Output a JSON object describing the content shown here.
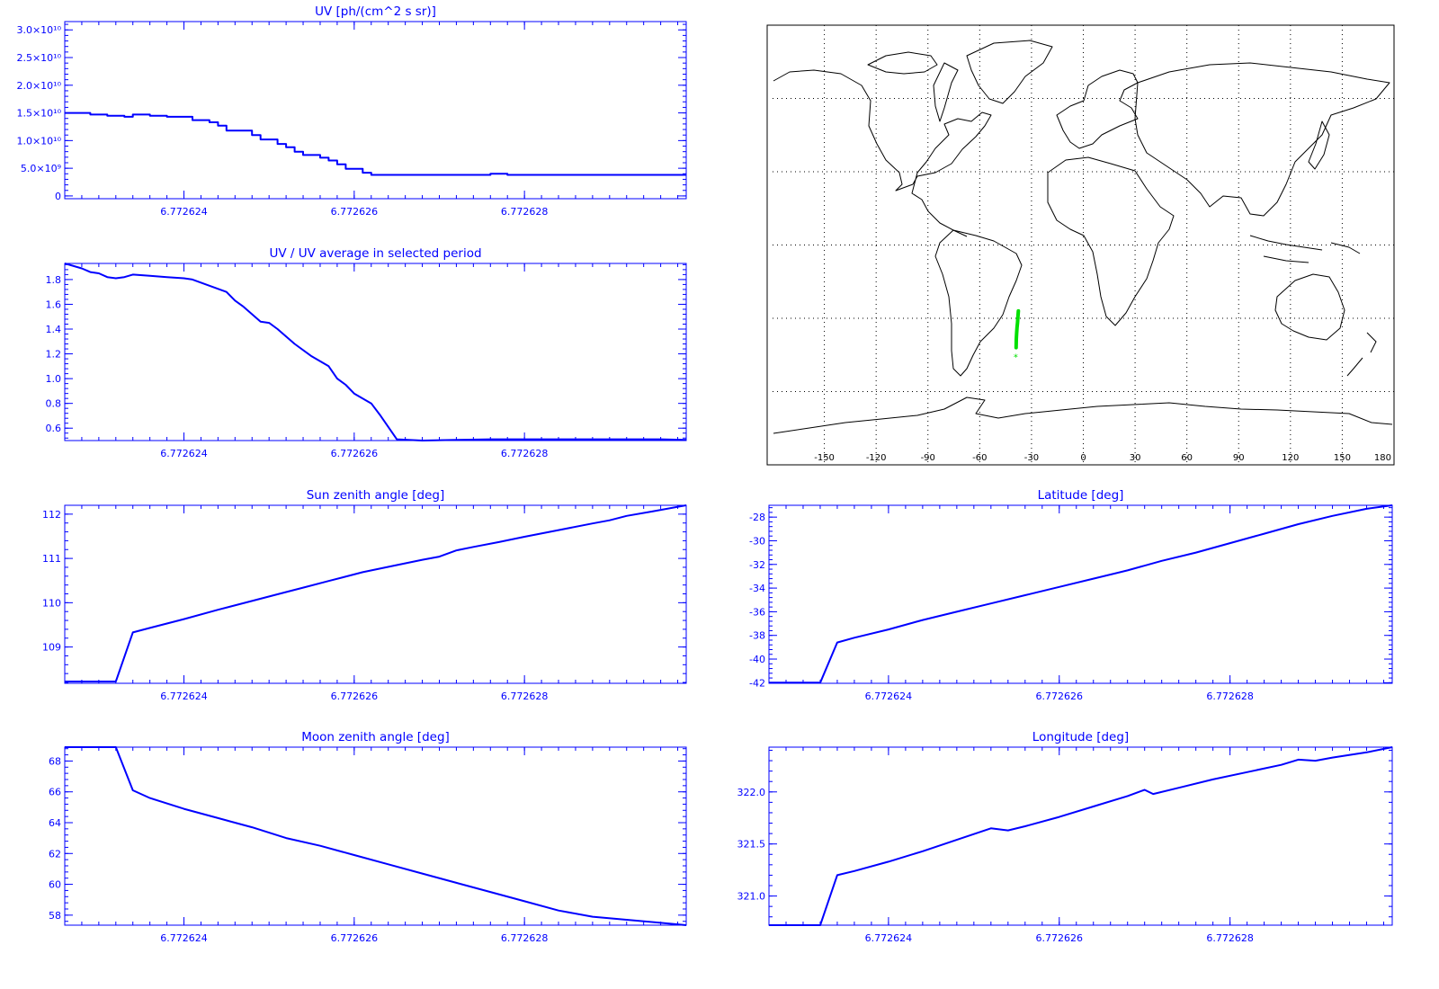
{
  "colors": {
    "plot": "#0000ff",
    "track": "#00e000",
    "map": "#000000"
  },
  "chart_data": [
    {
      "id": "uv",
      "type": "line",
      "step": true,
      "title": "UV [ph/(cm^2 s sr)]",
      "x_ticks": [
        {
          "v": 6.772624,
          "label": "6.772624"
        },
        {
          "v": 6.772626,
          "label": "6.772626"
        },
        {
          "v": 6.772628,
          "label": "6.772628"
        }
      ],
      "y_ticks": [
        {
          "v": 0,
          "label": "0"
        },
        {
          "v": 5000000000.0,
          "label": "5.0×10⁹"
        },
        {
          "v": 10000000000.0,
          "label": "1.0×10¹⁰"
        },
        {
          "v": 15000000000.0,
          "label": "1.5×10¹⁰"
        },
        {
          "v": 20000000000.0,
          "label": "2.0×10¹⁰"
        },
        {
          "v": 25000000000.0,
          "label": "2.5×10¹⁰"
        },
        {
          "v": 30000000000.0,
          "label": "3.0×10¹⁰"
        }
      ],
      "xlim": [
        6.7726226,
        6.7726299
      ],
      "ylim": [
        -500000000,
        31500000000
      ],
      "x": [
        6.7726226,
        6.7726229,
        6.7726231,
        6.7726233,
        6.7726234,
        6.7726236,
        6.7726238,
        6.772624,
        6.7726241,
        6.7726243,
        6.7726244,
        6.7726245,
        6.7726247,
        6.7726248,
        6.7726249,
        6.7726251,
        6.7726252,
        6.7726253,
        6.7726254,
        6.7726256,
        6.7726257,
        6.7726258,
        6.7726259,
        6.7726261,
        6.7726262,
        6.7726263,
        6.7726265,
        6.7726268,
        6.772627,
        6.7726272,
        6.7726274,
        6.7726276,
        6.7726278,
        6.772628,
        6.7726282,
        6.7726284,
        6.7726286,
        6.7726288,
        6.772629,
        6.7726292,
        6.7726294,
        6.7726296,
        6.7726299
      ],
      "y": [
        15000000000,
        14700000000,
        14500000000,
        14300000000,
        14700000000,
        14500000000,
        14300000000,
        14300000000,
        13700000000,
        13300000000,
        12700000000,
        11800000000,
        11800000000,
        11000000000,
        10200000000,
        9400000000,
        8800000000,
        8000000000,
        7400000000,
        6900000000,
        6400000000,
        5700000000,
        4900000000,
        4200000000,
        3800000000,
        3800000000,
        3800000000,
        3800000000,
        3800000000,
        3800000000,
        3800000000,
        4000000000,
        3800000000,
        3800000000,
        3800000000,
        3800000000,
        3800000000,
        3800000000,
        3800000000,
        3800000000,
        3800000000,
        3800000000,
        3800000000
      ]
    },
    {
      "id": "ratio",
      "type": "line",
      "title": "UV / UV average in selected period",
      "x_ticks": [
        {
          "v": 6.772624,
          "label": "6.772624"
        },
        {
          "v": 6.772626,
          "label": "6.772626"
        },
        {
          "v": 6.772628,
          "label": "6.772628"
        }
      ],
      "y_ticks": [
        {
          "v": 0.6,
          "label": "0.6"
        },
        {
          "v": 0.8,
          "label": "0.8"
        },
        {
          "v": 1.0,
          "label": "1.0"
        },
        {
          "v": 1.2,
          "label": "1.2"
        },
        {
          "v": 1.4,
          "label": "1.4"
        },
        {
          "v": 1.6,
          "label": "1.6"
        },
        {
          "v": 1.8,
          "label": "1.8"
        }
      ],
      "xlim": [
        6.7726226,
        6.7726299
      ],
      "ylim": [
        0.5,
        1.93
      ],
      "x": [
        6.7726226,
        6.7726228,
        6.7726229,
        6.772623,
        6.7726231,
        6.7726232,
        6.7726233,
        6.7726234,
        6.7726236,
        6.7726238,
        6.772624,
        6.7726241,
        6.7726243,
        6.7726245,
        6.7726246,
        6.7726247,
        6.7726249,
        6.772625,
        6.7726251,
        6.7726253,
        6.7726255,
        6.7726257,
        6.7726258,
        6.7726259,
        6.772626,
        6.7726262,
        6.7726263,
        6.7726265,
        6.7726268,
        6.7726272,
        6.7726276,
        6.772628,
        6.7726284,
        6.7726288,
        6.7726292,
        6.7726296,
        6.7726299
      ],
      "y": [
        1.93,
        1.89,
        1.86,
        1.85,
        1.82,
        1.81,
        1.82,
        1.84,
        1.83,
        1.82,
        1.81,
        1.8,
        1.75,
        1.7,
        1.63,
        1.58,
        1.46,
        1.45,
        1.4,
        1.28,
        1.18,
        1.1,
        1.0,
        0.95,
        0.88,
        0.8,
        0.71,
        0.51,
        0.5,
        0.505,
        0.51,
        0.51,
        0.51,
        0.51,
        0.51,
        0.51,
        0.505
      ]
    },
    {
      "id": "sun",
      "type": "line",
      "title": "Sun zenith angle [deg]",
      "x_ticks": [
        {
          "v": 6.772624,
          "label": "6.772624"
        },
        {
          "v": 6.772626,
          "label": "6.772626"
        },
        {
          "v": 6.772628,
          "label": "6.772628"
        }
      ],
      "y_ticks": [
        {
          "v": 109,
          "label": "109"
        },
        {
          "v": 110,
          "label": "110"
        },
        {
          "v": 111,
          "label": "111"
        },
        {
          "v": 112,
          "label": "112"
        }
      ],
      "xlim": [
        6.7726226,
        6.7726299
      ],
      "ylim": [
        108.18,
        112.2
      ],
      "x": [
        6.7726226,
        6.7726229,
        6.7726232,
        6.7726234,
        6.7726236,
        6.772624,
        6.7726244,
        6.7726248,
        6.7726252,
        6.7726254,
        6.7726257,
        6.7726261,
        6.7726265,
        6.7726268,
        6.772627,
        6.7726272,
        6.7726274,
        6.7726277,
        6.772628,
        6.7726284,
        6.7726288,
        6.772629,
        6.7726292,
        6.7726295,
        6.7726299
      ],
      "y": [
        108.22,
        108.22,
        108.22,
        109.33,
        109.43,
        109.63,
        109.84,
        110.04,
        110.24,
        110.34,
        110.49,
        110.69,
        110.85,
        110.97,
        111.04,
        111.18,
        111.26,
        111.37,
        111.49,
        111.64,
        111.79,
        111.86,
        111.96,
        112.06,
        112.2
      ]
    },
    {
      "id": "moon",
      "type": "line",
      "title": "Moon zenith angle [deg]",
      "x_ticks": [
        {
          "v": 6.772624,
          "label": "6.772624"
        },
        {
          "v": 6.772626,
          "label": "6.772626"
        },
        {
          "v": 6.772628,
          "label": "6.772628"
        }
      ],
      "y_ticks": [
        {
          "v": 58,
          "label": "58"
        },
        {
          "v": 60,
          "label": "60"
        },
        {
          "v": 62,
          "label": "62"
        },
        {
          "v": 64,
          "label": "64"
        },
        {
          "v": 66,
          "label": "66"
        },
        {
          "v": 68,
          "label": "68"
        }
      ],
      "xlim": [
        6.7726226,
        6.7726299
      ],
      "ylim": [
        57.35,
        68.9
      ],
      "x": [
        6.7726226,
        6.7726229,
        6.7726232,
        6.7726234,
        6.7726236,
        6.772624,
        6.7726244,
        6.7726248,
        6.7726252,
        6.7726256,
        6.772626,
        6.7726264,
        6.7726268,
        6.7726272,
        6.7726276,
        6.772628,
        6.7726284,
        6.7726288,
        6.7726292,
        6.7726296,
        6.7726299
      ],
      "y": [
        68.9,
        68.9,
        68.9,
        66.1,
        65.6,
        64.9,
        64.3,
        63.7,
        63.0,
        62.5,
        61.9,
        61.3,
        60.7,
        60.1,
        59.5,
        58.9,
        58.3,
        57.9,
        57.7,
        57.5,
        57.35
      ]
    },
    {
      "id": "lat",
      "type": "line",
      "title": "Latitude [deg]",
      "x_ticks": [
        {
          "v": 6.772624,
          "label": "6.772624"
        },
        {
          "v": 6.772626,
          "label": "6.772626"
        },
        {
          "v": 6.772628,
          "label": "6.772628"
        }
      ],
      "y_ticks": [
        {
          "v": -42,
          "label": "-42"
        },
        {
          "v": -40,
          "label": "-40"
        },
        {
          "v": -38,
          "label": "-38"
        },
        {
          "v": -36,
          "label": "-36"
        },
        {
          "v": -34,
          "label": "-34"
        },
        {
          "v": -32,
          "label": "-32"
        },
        {
          "v": -30,
          "label": "-30"
        },
        {
          "v": -28,
          "label": "-28"
        }
      ],
      "xlim": [
        6.7726226,
        6.7726299
      ],
      "ylim": [
        -42.05,
        -27.0
      ],
      "x": [
        6.7726226,
        6.7726229,
        6.7726232,
        6.7726234,
        6.7726236,
        6.772624,
        6.7726244,
        6.7726248,
        6.7726252,
        6.7726256,
        6.772626,
        6.7726264,
        6.7726268,
        6.7726272,
        6.7726276,
        6.772628,
        6.7726284,
        6.7726288,
        6.7726292,
        6.7726296,
        6.7726299
      ],
      "y": [
        -42.0,
        -42.0,
        -42.0,
        -38.6,
        -38.2,
        -37.5,
        -36.7,
        -36.0,
        -35.3,
        -34.6,
        -33.9,
        -33.2,
        -32.5,
        -31.7,
        -31.0,
        -30.2,
        -29.4,
        -28.6,
        -27.9,
        -27.3,
        -27.0
      ]
    },
    {
      "id": "lon",
      "type": "line",
      "title": "Longitude [deg]",
      "x_ticks": [
        {
          "v": 6.772624,
          "label": "6.772624"
        },
        {
          "v": 6.772626,
          "label": "6.772626"
        },
        {
          "v": 6.772628,
          "label": "6.772628"
        }
      ],
      "y_ticks": [
        {
          "v": 321.0,
          "label": "321.0"
        },
        {
          "v": 321.5,
          "label": "321.5"
        },
        {
          "v": 322.0,
          "label": "322.0"
        }
      ],
      "xlim": [
        6.7726226,
        6.7726299
      ],
      "ylim": [
        320.72,
        322.43
      ],
      "x": [
        6.7726226,
        6.7726229,
        6.7726232,
        6.7726234,
        6.7726236,
        6.772624,
        6.7726244,
        6.7726248,
        6.7726252,
        6.7726254,
        6.7726256,
        6.772626,
        6.7726264,
        6.7726268,
        6.772627,
        6.7726271,
        6.7726274,
        6.7726278,
        6.7726282,
        6.7726286,
        6.7726288,
        6.772629,
        6.7726292,
        6.7726296,
        6.7726299
      ],
      "y": [
        320.72,
        320.72,
        320.72,
        321.2,
        321.24,
        321.33,
        321.43,
        321.54,
        321.65,
        321.63,
        321.67,
        321.76,
        321.86,
        321.96,
        322.02,
        321.98,
        322.04,
        322.12,
        322.19,
        322.26,
        322.31,
        322.3,
        322.33,
        322.38,
        322.43
      ]
    }
  ],
  "map": {
    "lon_ticks": [
      {
        "v": -150,
        "label": "-150"
      },
      {
        "v": -120,
        "label": "-120"
      },
      {
        "v": -90,
        "label": "-90"
      },
      {
        "v": -60,
        "label": "-60"
      },
      {
        "v": -30,
        "label": "-30"
      },
      {
        "v": 0,
        "label": "0"
      },
      {
        "v": 30,
        "label": "30"
      },
      {
        "v": 60,
        "label": "60"
      },
      {
        "v": 90,
        "label": "90"
      },
      {
        "v": 120,
        "label": "120"
      },
      {
        "v": 150,
        "label": "150"
      },
      {
        "v": 180,
        "label": "180"
      }
    ],
    "lon_range": [
      -180,
      180
    ],
    "lat_range": [
      -90,
      90
    ],
    "grid_step_deg": 30,
    "track": {
      "lon": [
        -38.9,
        -38.8,
        -38.6,
        -38.4,
        -38.1,
        -37.9,
        -37.6
      ],
      "lat": [
        -42.0,
        -38.6,
        -36.0,
        -33.9,
        -31.7,
        -29.4,
        -27.0
      ]
    },
    "track_start_marker": "*"
  }
}
